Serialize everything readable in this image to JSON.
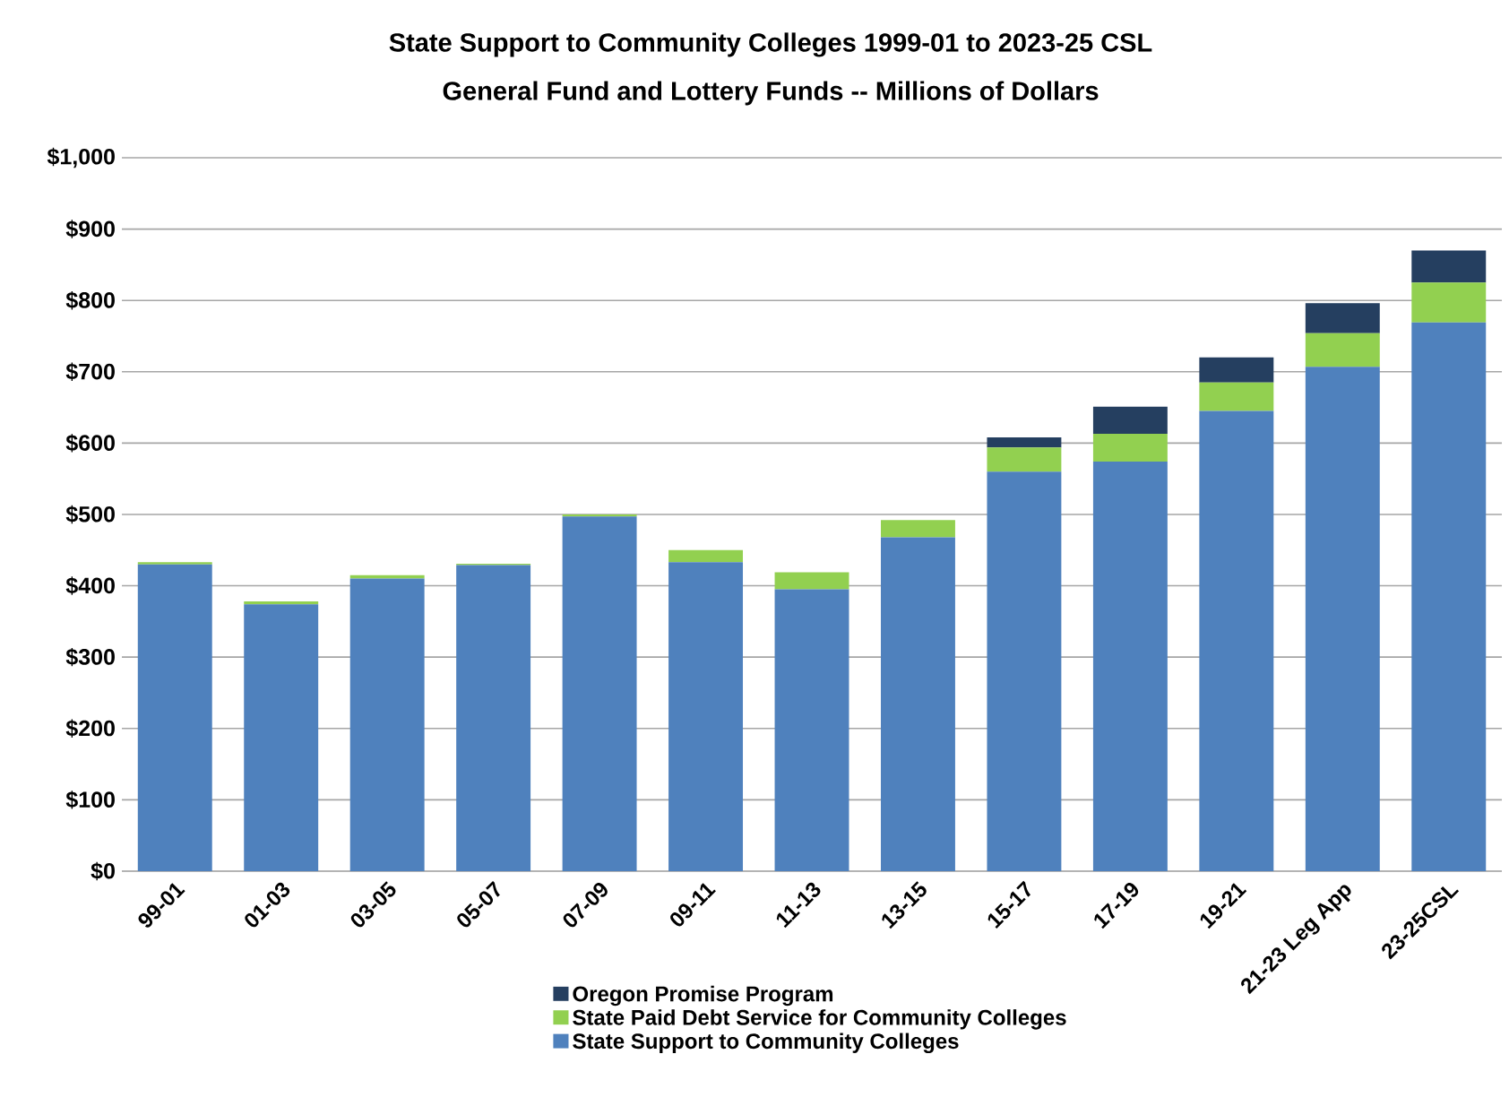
{
  "chart_data": {
    "type": "bar",
    "stacked": true,
    "title": "State Support to Community Colleges 1999-01 to 2023-25 CSL",
    "subtitle": "General Fund and Lottery Funds -- Millions of Dollars",
    "categories": [
      "99-01",
      "01-03",
      "03-05",
      "05-07",
      "07-09",
      "09-11",
      "11-13",
      "13-15",
      "15-17",
      "17-19",
      "19-21",
      "21-23 Leg App",
      "23-25CSL"
    ],
    "series": [
      {
        "name": "State Support to Community Colleges",
        "color": "#4f81bd",
        "values": [
          430,
          374,
          410,
          429,
          497,
          433,
          395,
          468,
          560,
          574,
          645,
          707,
          769
        ]
      },
      {
        "name": "State Paid Debt Service for Community Colleges",
        "color": "#92d050",
        "values": [
          3,
          4,
          5,
          2,
          3,
          17,
          24,
          24,
          34,
          39,
          40,
          47,
          56
        ]
      },
      {
        "name": "Oregon Promise Program",
        "color": "#253f60",
        "values": [
          null,
          null,
          null,
          null,
          null,
          null,
          null,
          null,
          14,
          38,
          35,
          42,
          45
        ]
      }
    ],
    "ylim": [
      0,
      1000
    ],
    "yticks": [
      {
        "value": 0,
        "label": "$0"
      },
      {
        "value": 100,
        "label": "$100"
      },
      {
        "value": 200,
        "label": "$200"
      },
      {
        "value": 300,
        "label": "$300"
      },
      {
        "value": 400,
        "label": "$400"
      },
      {
        "value": 500,
        "label": "$500"
      },
      {
        "value": 600,
        "label": "$600"
      },
      {
        "value": 700,
        "label": "$700"
      },
      {
        "value": 800,
        "label": "$800"
      },
      {
        "value": 900,
        "label": "$900"
      },
      {
        "value": 1000,
        "label": "$1,000"
      }
    ],
    "grid": "y",
    "legend": "bottom"
  }
}
